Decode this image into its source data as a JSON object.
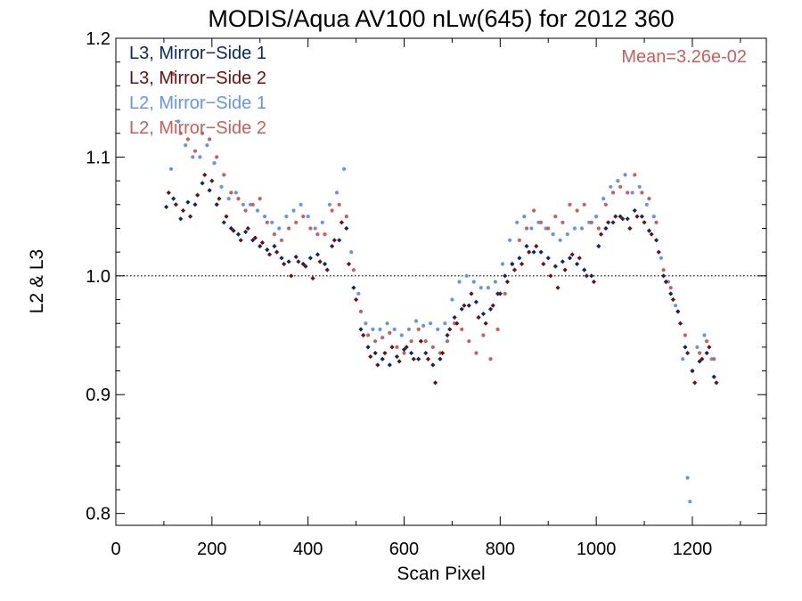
{
  "chart_data": {
    "type": "scatter",
    "title": "MODIS/Aqua AV100 nLw(645) for 2012 360",
    "xlabel": "Scan Pixel",
    "ylabel": "L2 & L3",
    "xlim": [
      0,
      1354
    ],
    "ylim": [
      0.79,
      1.2
    ],
    "xticks": [
      "0",
      "200",
      "400",
      "600",
      "800",
      "1000",
      "1200"
    ],
    "yticks": [
      "0.8",
      "0.9",
      "1.0",
      "1.1",
      "1.2"
    ],
    "reference_line": 1.0,
    "annotation": "Mean=3.26e-02",
    "annotation_color": "#cd5c5c",
    "legend_position": "top-left",
    "series": [
      {
        "name": "L3, Mirror−Side 1",
        "color": "#0a2a66",
        "marker": "diamond",
        "points": [
          [
            105,
            1.058
          ],
          [
            120,
            1.065
          ],
          [
            135,
            1.048
          ],
          [
            150,
            1.062
          ],
          [
            165,
            1.06
          ],
          [
            180,
            1.078
          ],
          [
            195,
            1.072
          ],
          [
            210,
            1.06
          ],
          [
            225,
            1.045
          ],
          [
            240,
            1.04
          ],
          [
            255,
            1.035
          ],
          [
            270,
            1.037
          ],
          [
            285,
            1.03
          ],
          [
            300,
            1.025
          ],
          [
            315,
            1.022
          ],
          [
            330,
            1.025
          ],
          [
            345,
            1.015
          ],
          [
            360,
            1.012
          ],
          [
            375,
            1.016
          ],
          [
            390,
            1.01
          ],
          [
            405,
            1.015
          ],
          [
            420,
            1.018
          ],
          [
            435,
            1.01
          ],
          [
            450,
            1.025
          ],
          [
            465,
            1.03
          ],
          [
            480,
            1.04
          ],
          [
            495,
            0.99
          ],
          [
            510,
            0.955
          ],
          [
            525,
            0.94
          ],
          [
            540,
            0.935
          ],
          [
            555,
            0.93
          ],
          [
            570,
            0.925
          ],
          [
            585,
            0.932
          ],
          [
            600,
            0.938
          ],
          [
            615,
            0.935
          ],
          [
            630,
            0.93
          ],
          [
            645,
            0.935
          ],
          [
            660,
            0.925
          ],
          [
            675,
            0.93
          ],
          [
            690,
            0.95
          ],
          [
            705,
            0.965
          ],
          [
            720,
            0.972
          ],
          [
            735,
            0.975
          ],
          [
            750,
            0.978
          ],
          [
            765,
            0.968
          ],
          [
            780,
            0.972
          ],
          [
            795,
            0.985
          ],
          [
            810,
            1.0
          ],
          [
            825,
            1.01
          ],
          [
            840,
            1.015
          ],
          [
            855,
            1.025
          ],
          [
            870,
            1.02
          ],
          [
            885,
            1.02
          ],
          [
            900,
            1.015
          ],
          [
            915,
            1.008
          ],
          [
            930,
            1.012
          ],
          [
            945,
            1.015
          ],
          [
            960,
            1.01
          ],
          [
            975,
            1.005
          ],
          [
            990,
            1.0
          ],
          [
            1005,
            1.025
          ],
          [
            1020,
            1.04
          ],
          [
            1035,
            1.045
          ],
          [
            1050,
            1.05
          ],
          [
            1065,
            1.048
          ],
          [
            1080,
            1.055
          ],
          [
            1095,
            1.05
          ],
          [
            1110,
            1.038
          ],
          [
            1125,
            1.03
          ],
          [
            1140,
            1.0
          ],
          [
            1155,
            0.985
          ],
          [
            1170,
            0.97
          ],
          [
            1185,
            0.94
          ],
          [
            1200,
            0.92
          ],
          [
            1215,
            0.928
          ],
          [
            1230,
            0.935
          ],
          [
            1245,
            0.915
          ]
        ]
      },
      {
        "name": "L3, Mirror−Side 2",
        "color": "#6b0f12",
        "marker": "diamond",
        "points": [
          [
            110,
            1.07
          ],
          [
            125,
            1.06
          ],
          [
            140,
            1.055
          ],
          [
            155,
            1.05
          ],
          [
            170,
            1.068
          ],
          [
            185,
            1.085
          ],
          [
            200,
            1.08
          ],
          [
            215,
            1.065
          ],
          [
            230,
            1.05
          ],
          [
            245,
            1.038
          ],
          [
            260,
            1.03
          ],
          [
            275,
            1.04
          ],
          [
            290,
            1.032
          ],
          [
            305,
            1.028
          ],
          [
            320,
            1.018
          ],
          [
            335,
            1.02
          ],
          [
            350,
            1.01
          ],
          [
            365,
            1.0
          ],
          [
            380,
            1.012
          ],
          [
            395,
            1.008
          ],
          [
            410,
            0.998
          ],
          [
            425,
            1.012
          ],
          [
            440,
            1.005
          ],
          [
            455,
            1.03
          ],
          [
            470,
            1.045
          ],
          [
            485,
            1.01
          ],
          [
            500,
            0.98
          ],
          [
            515,
            0.95
          ],
          [
            530,
            0.932
          ],
          [
            545,
            0.925
          ],
          [
            560,
            0.935
          ],
          [
            575,
            0.94
          ],
          [
            590,
            0.928
          ],
          [
            605,
            0.94
          ],
          [
            620,
            0.93
          ],
          [
            635,
            0.945
          ],
          [
            650,
            0.93
          ],
          [
            665,
            0.91
          ],
          [
            680,
            0.935
          ],
          [
            695,
            0.955
          ],
          [
            710,
            0.96
          ],
          [
            725,
            0.975
          ],
          [
            740,
            0.985
          ],
          [
            755,
            0.965
          ],
          [
            770,
            0.96
          ],
          [
            785,
            0.975
          ],
          [
            800,
            0.985
          ],
          [
            815,
            0.995
          ],
          [
            830,
            1.005
          ],
          [
            845,
            1.01
          ],
          [
            860,
            1.02
          ],
          [
            875,
            1.025
          ],
          [
            890,
            1.01
          ],
          [
            905,
            1.0
          ],
          [
            920,
            0.99
          ],
          [
            935,
            1.005
          ],
          [
            950,
            1.018
          ],
          [
            965,
            1.015
          ],
          [
            980,
            1.0
          ],
          [
            995,
            0.995
          ],
          [
            1010,
            1.035
          ],
          [
            1025,
            1.045
          ],
          [
            1040,
            1.05
          ],
          [
            1055,
            1.048
          ],
          [
            1070,
            1.04
          ],
          [
            1085,
            1.05
          ],
          [
            1100,
            1.045
          ],
          [
            1115,
            1.035
          ],
          [
            1130,
            1.02
          ],
          [
            1145,
            0.995
          ],
          [
            1160,
            0.98
          ],
          [
            1175,
            0.96
          ],
          [
            1190,
            0.935
          ],
          [
            1205,
            0.91
          ],
          [
            1220,
            0.93
          ],
          [
            1235,
            0.94
          ],
          [
            1250,
            0.91
          ]
        ]
      },
      {
        "name": "L2, Mirror−Side 1",
        "color": "#6495ed",
        "marker": "dot",
        "points": [
          [
            115,
            1.09
          ],
          [
            130,
            1.13
          ],
          [
            145,
            1.11
          ],
          [
            160,
            1.1
          ],
          [
            175,
            1.1
          ],
          [
            190,
            1.11
          ],
          [
            205,
            1.095
          ],
          [
            220,
            1.075
          ],
          [
            235,
            1.065
          ],
          [
            250,
            1.07
          ],
          [
            265,
            1.06
          ],
          [
            280,
            1.06
          ],
          [
            295,
            1.055
          ],
          [
            310,
            1.05
          ],
          [
            325,
            1.045
          ],
          [
            340,
            1.04
          ],
          [
            355,
            1.05
          ],
          [
            370,
            1.055
          ],
          [
            385,
            1.06
          ],
          [
            400,
            1.05
          ],
          [
            415,
            1.04
          ],
          [
            430,
            1.045
          ],
          [
            445,
            1.06
          ],
          [
            460,
            1.07
          ],
          [
            475,
            1.09
          ],
          [
            490,
            1.02
          ],
          [
            505,
            0.985
          ],
          [
            520,
            0.96
          ],
          [
            535,
            0.955
          ],
          [
            550,
            0.955
          ],
          [
            565,
            0.96
          ],
          [
            580,
            0.955
          ],
          [
            595,
            0.95
          ],
          [
            610,
            0.955
          ],
          [
            625,
            0.962
          ],
          [
            640,
            0.958
          ],
          [
            655,
            0.96
          ],
          [
            670,
            0.955
          ],
          [
            685,
            0.96
          ],
          [
            700,
            0.98
          ],
          [
            715,
            0.995
          ],
          [
            730,
            1.0
          ],
          [
            745,
            0.995
          ],
          [
            760,
            0.99
          ],
          [
            775,
            0.99
          ],
          [
            790,
            0.995
          ],
          [
            805,
            1.01
          ],
          [
            820,
            1.03
          ],
          [
            835,
            1.045
          ],
          [
            850,
            1.05
          ],
          [
            865,
            1.04
          ],
          [
            880,
            1.045
          ],
          [
            895,
            1.04
          ],
          [
            910,
            1.035
          ],
          [
            925,
            1.03
          ],
          [
            940,
            1.035
          ],
          [
            955,
            1.04
          ],
          [
            970,
            1.04
          ],
          [
            985,
            1.045
          ],
          [
            1000,
            1.05
          ],
          [
            1015,
            1.065
          ],
          [
            1030,
            1.075
          ],
          [
            1045,
            1.08
          ],
          [
            1060,
            1.085
          ],
          [
            1075,
            1.07
          ],
          [
            1090,
            1.075
          ],
          [
            1105,
            1.06
          ],
          [
            1120,
            1.05
          ],
          [
            1135,
            1.015
          ],
          [
            1150,
            0.995
          ],
          [
            1165,
            0.975
          ],
          [
            1180,
            0.93
          ],
          [
            1190,
            0.83
          ],
          [
            1195,
            0.81
          ],
          [
            1210,
            0.94
          ],
          [
            1225,
            0.95
          ],
          [
            1240,
            0.93
          ]
        ]
      },
      {
        "name": "L2, Mirror−Side 2",
        "color": "#cd5c5c",
        "marker": "dot",
        "points": [
          [
            120,
            1.17
          ],
          [
            135,
            1.12
          ],
          [
            150,
            1.115
          ],
          [
            165,
            1.105
          ],
          [
            180,
            1.12
          ],
          [
            195,
            1.115
          ],
          [
            210,
            1.1
          ],
          [
            225,
            1.085
          ],
          [
            240,
            1.07
          ],
          [
            255,
            1.065
          ],
          [
            270,
            1.055
          ],
          [
            285,
            1.06
          ],
          [
            300,
            1.065
          ],
          [
            315,
            1.045
          ],
          [
            330,
            1.035
          ],
          [
            345,
            1.03
          ],
          [
            360,
            1.04
          ],
          [
            375,
            1.045
          ],
          [
            390,
            1.05
          ],
          [
            405,
            1.04
          ],
          [
            420,
            1.035
          ],
          [
            435,
            1.035
          ],
          [
            450,
            1.055
          ],
          [
            465,
            1.06
          ],
          [
            480,
            1.05
          ],
          [
            495,
            1.005
          ],
          [
            510,
            0.97
          ],
          [
            525,
            0.95
          ],
          [
            540,
            0.945
          ],
          [
            555,
            0.948
          ],
          [
            570,
            0.952
          ],
          [
            585,
            0.94
          ],
          [
            600,
            0.935
          ],
          [
            615,
            0.945
          ],
          [
            630,
            0.955
          ],
          [
            645,
            0.945
          ],
          [
            660,
            0.94
          ],
          [
            675,
            0.935
          ],
          [
            690,
            0.945
          ],
          [
            705,
            0.96
          ],
          [
            720,
            0.955
          ],
          [
            735,
            0.945
          ],
          [
            750,
            0.935
          ],
          [
            765,
            0.95
          ],
          [
            780,
            0.93
          ],
          [
            795,
            0.955
          ],
          [
            810,
            0.985
          ],
          [
            825,
            1.01
          ],
          [
            840,
            1.03
          ],
          [
            855,
            1.04
          ],
          [
            870,
            1.055
          ],
          [
            885,
            1.045
          ],
          [
            900,
            1.04
          ],
          [
            915,
            1.05
          ],
          [
            930,
            1.045
          ],
          [
            945,
            1.06
          ],
          [
            960,
            1.055
          ],
          [
            975,
            1.06
          ],
          [
            990,
            1.045
          ],
          [
            1005,
            1.04
          ],
          [
            1020,
            1.06
          ],
          [
            1035,
            1.07
          ],
          [
            1050,
            1.075
          ],
          [
            1065,
            1.07
          ],
          [
            1080,
            1.085
          ],
          [
            1095,
            1.07
          ],
          [
            1110,
            1.065
          ],
          [
            1125,
            1.045
          ],
          [
            1140,
            1.005
          ],
          [
            1155,
            0.99
          ],
          [
            1170,
            0.97
          ],
          [
            1185,
            0.95
          ],
          [
            1200,
            0.92
          ],
          [
            1215,
            0.935
          ],
          [
            1230,
            0.945
          ],
          [
            1245,
            0.93
          ]
        ]
      }
    ]
  }
}
